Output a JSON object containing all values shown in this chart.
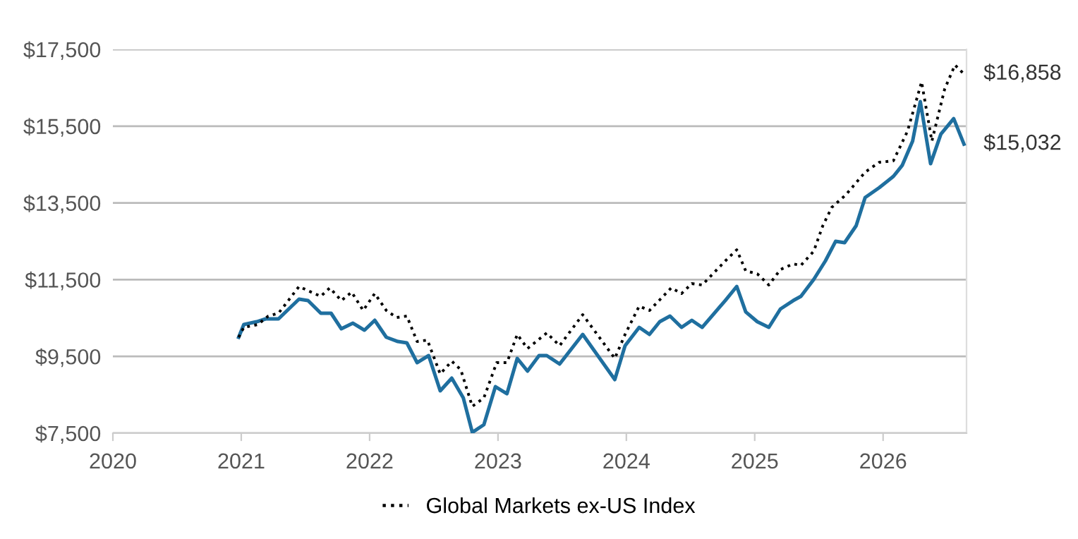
{
  "chart_data": {
    "type": "line",
    "xlim": [
      2020,
      2026.65
    ],
    "xticks": [
      2020,
      2021,
      2022,
      2023,
      2024,
      2025,
      2026
    ],
    "ylim": [
      7500,
      17500
    ],
    "yticks": [
      {
        "value": 7500,
        "label": "$7,500"
      },
      {
        "value": 9500,
        "label": "$9,500"
      },
      {
        "value": 11500,
        "label": "$11,500"
      },
      {
        "value": 13500,
        "label": "$13,500"
      },
      {
        "value": 15500,
        "label": "$15,500"
      },
      {
        "value": 17500,
        "label": "$17,500"
      }
    ],
    "grid": "y",
    "legend": "bottom",
    "marker": "none",
    "series": [
      {
        "color": "#1f6f9f",
        "line_style": "solid",
        "x": [
          2020.98,
          2021.02,
          2021.12,
          2021.19,
          2021.29,
          2021.45,
          2021.52,
          2021.62,
          2021.7,
          2021.78,
          2021.87,
          2021.96,
          2022.04,
          2022.13,
          2022.22,
          2022.29,
          2022.37,
          2022.46,
          2022.55,
          2022.64,
          2022.73,
          2022.8,
          2022.89,
          2022.98,
          2023.07,
          2023.15,
          2023.23,
          2023.32,
          2023.38,
          2023.48,
          2023.66,
          2023.91,
          2023.99,
          2024.1,
          2024.18,
          2024.26,
          2024.34,
          2024.43,
          2024.51,
          2024.59,
          2024.77,
          2024.86,
          2024.93,
          2025.02,
          2025.11,
          2025.2,
          2025.3,
          2025.36,
          2025.46,
          2025.55,
          2025.63,
          2025.7,
          2025.79,
          2025.86,
          2025.97,
          2026.08,
          2026.15,
          2026.23,
          2026.29,
          2026.37,
          2026.45,
          2026.55,
          2026.63
        ],
        "values": [
          10000,
          10331,
          10404,
          10478,
          10478,
          10992,
          10955,
          10625,
          10625,
          10220,
          10367,
          10183,
          10441,
          10000,
          9889,
          9853,
          9338,
          9522,
          8603,
          8934,
          8419,
          7520,
          7721,
          8713,
          8529,
          9448,
          9117,
          9522,
          9522,
          9301,
          10073,
          8897,
          9779,
          10257,
          10073,
          10404,
          10551,
          10257,
          10441,
          10257,
          10955,
          11323,
          10661,
          10404,
          10257,
          10735,
          10955,
          11066,
          11507,
          11985,
          12499,
          12463,
          12904,
          13639,
          13896,
          14190,
          14484,
          15109,
          16139,
          14521,
          15293,
          15697,
          15032
        ]
      },
      {
        "name": "Global Markets ex-US Index",
        "color": "#000000",
        "line_style": "dotted",
        "x": [
          2020.98,
          2021.02,
          2021.13,
          2021.21,
          2021.29,
          2021.35,
          2021.45,
          2021.52,
          2021.62,
          2021.69,
          2021.78,
          2021.86,
          2021.95,
          2022.04,
          2022.13,
          2022.21,
          2022.29,
          2022.37,
          2022.45,
          2022.55,
          2022.64,
          2022.71,
          2022.8,
          2022.89,
          2022.99,
          2023.07,
          2023.15,
          2023.23,
          2023.38,
          2023.48,
          2023.66,
          2023.91,
          2023.99,
          2024.1,
          2024.18,
          2024.35,
          2024.43,
          2024.51,
          2024.59,
          2024.77,
          2024.86,
          2024.93,
          2025.02,
          2025.11,
          2025.2,
          2025.3,
          2025.36,
          2025.46,
          2025.53,
          2025.6,
          2025.71,
          2025.86,
          2025.97,
          2026.08,
          2026.19,
          2026.3,
          2026.38,
          2026.48,
          2026.56,
          2026.63
        ],
        "values": [
          10000,
          10257,
          10331,
          10551,
          10625,
          10882,
          11323,
          11213,
          11066,
          11286,
          10955,
          11176,
          10698,
          11139,
          10698,
          10514,
          10551,
          9889,
          9926,
          9044,
          9375,
          9154,
          8198,
          8419,
          9338,
          9338,
          10073,
          9706,
          10110,
          9779,
          10588,
          9448,
          10073,
          10808,
          10698,
          11286,
          11139,
          11397,
          11360,
          11985,
          12279,
          11727,
          11654,
          11360,
          11764,
          11911,
          11874,
          12242,
          12904,
          13382,
          13712,
          14301,
          14558,
          14595,
          15367,
          16653,
          15109,
          16469,
          17094,
          16858
        ]
      }
    ],
    "annotations": [
      {
        "text": "$16,858",
        "x": 2026.63,
        "y": 16858
      },
      {
        "text": "$15,032",
        "x": 2026.63,
        "y": 15032
      }
    ]
  }
}
